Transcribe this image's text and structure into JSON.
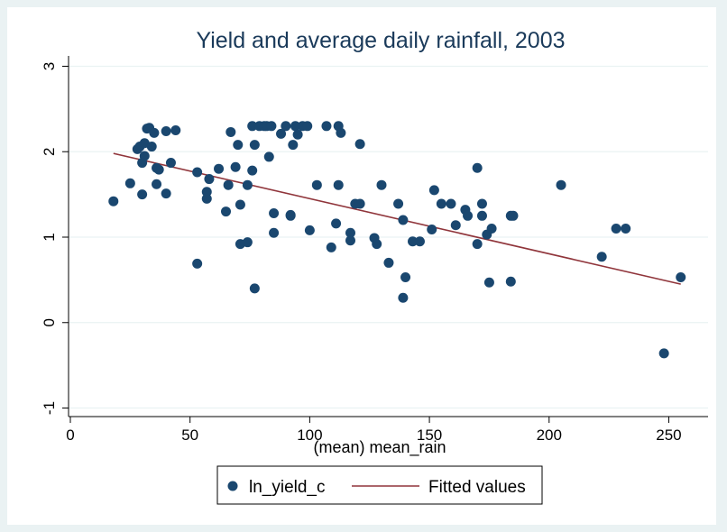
{
  "chart_data": {
    "type": "scatter",
    "title": "Yield and average daily rainfall, 2003",
    "xlabel": "(mean) mean_rain",
    "ylabel": "",
    "xlim": [
      0,
      260
    ],
    "ylim": [
      -1.1,
      3.1
    ],
    "xticks": [
      "0",
      "50",
      "100",
      "150",
      "200",
      "250"
    ],
    "xtick_values": [
      0,
      50,
      100,
      150,
      200,
      250
    ],
    "yticks": [
      "-1",
      "0",
      "1",
      "2",
      "3"
    ],
    "ytick_values": [
      -1,
      0,
      1,
      2,
      3
    ],
    "grid": "horizontal",
    "legend_position": "bottom",
    "colors": {
      "scatter": "#1a476f",
      "fit": "#90353b",
      "title": "#1a3a5a",
      "background": "#eaf2f3"
    },
    "series": [
      {
        "name": "ln_yield_c",
        "type": "scatter",
        "points": [
          [
            18,
            1.42
          ],
          [
            25,
            1.63
          ],
          [
            28,
            2.03
          ],
          [
            29,
            2.06
          ],
          [
            30,
            1.5
          ],
          [
            30,
            1.87
          ],
          [
            31,
            1.95
          ],
          [
            31,
            2.1
          ],
          [
            32,
            2.27
          ],
          [
            33,
            2.28
          ],
          [
            34,
            2.06
          ],
          [
            35,
            2.22
          ],
          [
            36,
            1.62
          ],
          [
            36,
            1.81
          ],
          [
            37,
            1.79
          ],
          [
            40,
            2.24
          ],
          [
            40,
            1.51
          ],
          [
            42,
            1.87
          ],
          [
            44,
            2.25
          ],
          [
            53,
            1.76
          ],
          [
            53,
            0.69
          ],
          [
            57,
            1.53
          ],
          [
            57,
            1.45
          ],
          [
            58,
            1.68
          ],
          [
            62,
            1.8
          ],
          [
            65,
            1.3
          ],
          [
            66,
            1.61
          ],
          [
            67,
            2.23
          ],
          [
            69,
            1.82
          ],
          [
            70,
            2.08
          ],
          [
            71,
            1.38
          ],
          [
            71,
            0.92
          ],
          [
            74,
            0.94
          ],
          [
            74,
            1.61
          ],
          [
            76,
            1.78
          ],
          [
            76,
            2.3
          ],
          [
            77,
            2.08
          ],
          [
            77,
            0.4
          ],
          [
            79,
            2.3
          ],
          [
            81,
            2.3
          ],
          [
            82,
            2.3
          ],
          [
            83,
            1.94
          ],
          [
            84,
            2.3
          ],
          [
            85,
            1.05
          ],
          [
            85,
            1.28
          ],
          [
            88,
            2.21
          ],
          [
            90,
            2.3
          ],
          [
            92,
            1.26
          ],
          [
            92,
            1.25
          ],
          [
            93,
            2.08
          ],
          [
            94,
            2.3
          ],
          [
            95,
            2.2
          ],
          [
            97,
            2.3
          ],
          [
            99,
            2.3
          ],
          [
            100,
            1.08
          ],
          [
            103,
            1.61
          ],
          [
            107,
            2.3
          ],
          [
            109,
            0.88
          ],
          [
            111,
            1.16
          ],
          [
            112,
            2.3
          ],
          [
            112,
            1.61
          ],
          [
            113,
            2.22
          ],
          [
            117,
            1.05
          ],
          [
            117,
            0.96
          ],
          [
            119,
            1.39
          ],
          [
            121,
            1.39
          ],
          [
            121,
            2.09
          ],
          [
            127,
            0.99
          ],
          [
            128,
            0.92
          ],
          [
            130,
            1.61
          ],
          [
            133,
            0.7
          ],
          [
            137,
            1.39
          ],
          [
            139,
            1.2
          ],
          [
            140,
            0.53
          ],
          [
            139,
            0.29
          ],
          [
            143,
            0.95
          ],
          [
            146,
            0.95
          ],
          [
            151,
            1.09
          ],
          [
            152,
            1.55
          ],
          [
            155,
            1.39
          ],
          [
            159,
            1.39
          ],
          [
            161,
            1.14
          ],
          [
            165,
            1.32
          ],
          [
            166,
            1.25
          ],
          [
            170,
            1.81
          ],
          [
            170,
            0.92
          ],
          [
            172,
            1.39
          ],
          [
            172,
            1.25
          ],
          [
            174,
            1.03
          ],
          [
            175,
            0.47
          ],
          [
            176,
            1.1
          ],
          [
            184,
            1.25
          ],
          [
            184,
            0.48
          ],
          [
            185,
            1.25
          ],
          [
            205,
            1.61
          ],
          [
            222,
            0.77
          ],
          [
            228,
            1.1
          ],
          [
            232,
            1.1
          ],
          [
            248,
            -0.36
          ],
          [
            255,
            0.53
          ]
        ]
      },
      {
        "name": "Fitted values",
        "type": "line",
        "points": [
          [
            18,
            1.98
          ],
          [
            255,
            0.45
          ]
        ]
      }
    ]
  }
}
